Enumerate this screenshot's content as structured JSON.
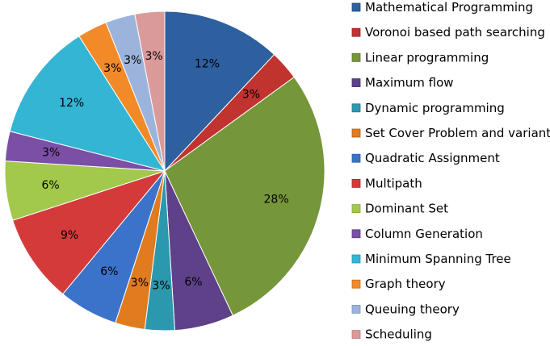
{
  "chart_data": {
    "type": "pie",
    "title": "",
    "start_angle_deg": 0,
    "direction": "clockwise",
    "legend_position": "right",
    "series": [
      {
        "name": "",
        "slices": [
          {
            "label": "Mathematical Programming",
            "value": 12,
            "display": "12%",
            "color": "#2E5F9E",
            "border": "#1F4A80"
          },
          {
            "label": "Voronoi based path searching",
            "value": 3,
            "display": "3%",
            "color": "#C0332F",
            "border": "#98231F"
          },
          {
            "label": "Linear programming",
            "value": 28,
            "display": "28%",
            "color": "#76963A",
            "border": "#5A7A26"
          },
          {
            "label": "Maximum flow",
            "value": 6,
            "display": "6%",
            "color": "#5E4189",
            "border": "#46306A"
          },
          {
            "label": "Dynamic programming",
            "value": 3,
            "display": "3%",
            "color": "#2C98AE",
            "border": "#1E7A8C"
          },
          {
            "label": "Set Cover Problem and variant",
            "value": 3,
            "display": "3%",
            "color": "#E07B20",
            "border": "#B35E12"
          },
          {
            "label": "Quadratic Assignment",
            "value": 6,
            "display": "6%",
            "color": "#3A73C9",
            "border": "#2A5AA6"
          },
          {
            "label": "Multipath",
            "value": 9,
            "display": "9%",
            "color": "#D53A3A",
            "border": "#A82828"
          },
          {
            "label": "Dominant Set",
            "value": 6,
            "display": "6%",
            "color": "#A2C94B",
            "border": "#82A836"
          },
          {
            "label": "Column Generation",
            "value": 3,
            "display": "3%",
            "color": "#7A4FA5",
            "border": "#5E3A85"
          },
          {
            "label": "Minimum Spanning Tree",
            "value": 12,
            "display": "12%",
            "color": "#33B5D4",
            "border": "#2396B2"
          },
          {
            "label": "Graph theory",
            "value": 3,
            "display": "3%",
            "color": "#F28A28",
            "border": "#C96D15"
          },
          {
            "label": "Queuing theory",
            "value": 3,
            "display": "3%",
            "color": "#9CB4DC",
            "border": "#7F97C2"
          },
          {
            "label": "Scheduling",
            "value": 3,
            "display": "3%",
            "color": "#DB9A9A",
            "border": "#BD7C7C"
          }
        ]
      }
    ]
  }
}
